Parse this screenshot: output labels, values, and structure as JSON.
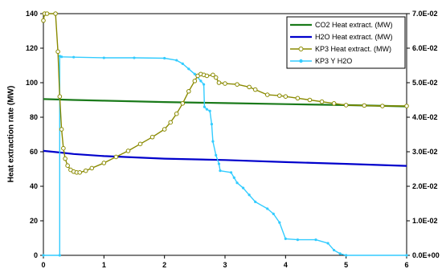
{
  "chart_data": {
    "type": "line",
    "ylabel": "Heat extraction rate (MW)",
    "x": {
      "lim": [
        0,
        6
      ],
      "ticks": [
        "0",
        "1",
        "2",
        "3",
        "4",
        "5",
        "6"
      ]
    },
    "y_left": {
      "lim": [
        0,
        140
      ],
      "ticks": [
        "0",
        "20",
        "40",
        "60",
        "80",
        "100",
        "120",
        "140"
      ]
    },
    "y_right": {
      "lim": [
        0,
        0.07
      ],
      "ticks": [
        "0.0E+00",
        "1.0E-02",
        "2.0E-02",
        "3.0E-02",
        "4.0E-02",
        "5.0E-02",
        "6.0E-02",
        "7.0E-02"
      ]
    },
    "grid": false,
    "legend_position": "top-right",
    "series": [
      {
        "name": "CO2 Heat extract. (MW)",
        "color": "#1a7a1a",
        "axis": "left",
        "marker": "none",
        "points": [
          [
            0,
            90.5
          ],
          [
            0.5,
            90
          ],
          [
            1,
            89.6
          ],
          [
            2,
            88.8
          ],
          [
            3,
            88.2
          ],
          [
            4,
            87.6
          ],
          [
            5,
            87
          ],
          [
            6,
            86.3
          ]
        ]
      },
      {
        "name": "H2O Heat extract. (MW)",
        "color": "#0000cc",
        "axis": "left",
        "marker": "none",
        "points": [
          [
            0,
            60.5
          ],
          [
            0.3,
            59.5
          ],
          [
            0.5,
            58.7
          ],
          [
            1,
            57.5
          ],
          [
            2,
            56
          ],
          [
            3,
            55.2
          ],
          [
            4,
            54
          ],
          [
            5,
            53
          ],
          [
            6,
            51.8
          ]
        ]
      },
      {
        "name": "KP3 Heat extract. (MW)",
        "color": "#8a8a00",
        "axis": "left",
        "marker": "open-circle",
        "points": [
          [
            0,
            136
          ],
          [
            0.02,
            140
          ],
          [
            0.06,
            140
          ],
          [
            0.2,
            140
          ],
          [
            0.24,
            118
          ],
          [
            0.27,
            92
          ],
          [
            0.3,
            73
          ],
          [
            0.33,
            62
          ],
          [
            0.36,
            56
          ],
          [
            0.4,
            52
          ],
          [
            0.45,
            49.5
          ],
          [
            0.5,
            48.5
          ],
          [
            0.55,
            48
          ],
          [
            0.6,
            48
          ],
          [
            0.7,
            49
          ],
          [
            0.8,
            50.5
          ],
          [
            1,
            53.5
          ],
          [
            1.2,
            57
          ],
          [
            1.4,
            60.5
          ],
          [
            1.6,
            64.5
          ],
          [
            1.8,
            68.5
          ],
          [
            2,
            73
          ],
          [
            2.1,
            77
          ],
          [
            2.2,
            82
          ],
          [
            2.3,
            88
          ],
          [
            2.4,
            95
          ],
          [
            2.5,
            101
          ],
          [
            2.55,
            104
          ],
          [
            2.6,
            105
          ],
          [
            2.65,
            104.5
          ],
          [
            2.7,
            104
          ],
          [
            2.8,
            104.5
          ],
          [
            2.85,
            103
          ],
          [
            2.9,
            100
          ],
          [
            3,
            99.5
          ],
          [
            3.2,
            99
          ],
          [
            3.4,
            97.5
          ],
          [
            3.5,
            96
          ],
          [
            3.7,
            93
          ],
          [
            3.9,
            92.5
          ],
          [
            4,
            92
          ],
          [
            4.2,
            91
          ],
          [
            4.4,
            90
          ],
          [
            4.6,
            89
          ],
          [
            4.8,
            88
          ],
          [
            5,
            87
          ],
          [
            5.3,
            86.8
          ],
          [
            5.6,
            86.5
          ],
          [
            6,
            86.5
          ]
        ]
      },
      {
        "name": "KP3  Y H2O",
        "color": "#33ccff",
        "axis": "right",
        "marker": "small-dot",
        "points": [
          [
            0,
            0
          ],
          [
            0.27,
            0
          ],
          [
            0.27,
            0.0577
          ],
          [
            0.3,
            0.0575
          ],
          [
            0.5,
            0.0574
          ],
          [
            1,
            0.0572
          ],
          [
            1.5,
            0.0572
          ],
          [
            2,
            0.0571
          ],
          [
            2.2,
            0.0565
          ],
          [
            2.3,
            0.0555
          ],
          [
            2.4,
            0.054
          ],
          [
            2.5,
            0.0525
          ],
          [
            2.6,
            0.0505
          ],
          [
            2.65,
            0.0495
          ],
          [
            2.66,
            0.043
          ],
          [
            2.7,
            0.0423
          ],
          [
            2.75,
            0.0418
          ],
          [
            2.78,
            0.038
          ],
          [
            2.8,
            0.033
          ],
          [
            2.85,
            0.029
          ],
          [
            2.9,
            0.0265
          ],
          [
            2.92,
            0.0245
          ],
          [
            3.1,
            0.024
          ],
          [
            3.15,
            0.0225
          ],
          [
            3.2,
            0.021
          ],
          [
            3.3,
            0.0195
          ],
          [
            3.4,
            0.0175
          ],
          [
            3.5,
            0.0155
          ],
          [
            3.7,
            0.0135
          ],
          [
            3.8,
            0.012
          ],
          [
            3.9,
            0.0095
          ],
          [
            4,
            0.0048
          ],
          [
            4.2,
            0.0045
          ],
          [
            4.5,
            0.0045
          ],
          [
            4.7,
            0.0035
          ],
          [
            4.8,
            0.0015
          ],
          [
            4.9,
            0.0005
          ],
          [
            5,
            0
          ],
          [
            6,
            0
          ]
        ]
      }
    ]
  }
}
